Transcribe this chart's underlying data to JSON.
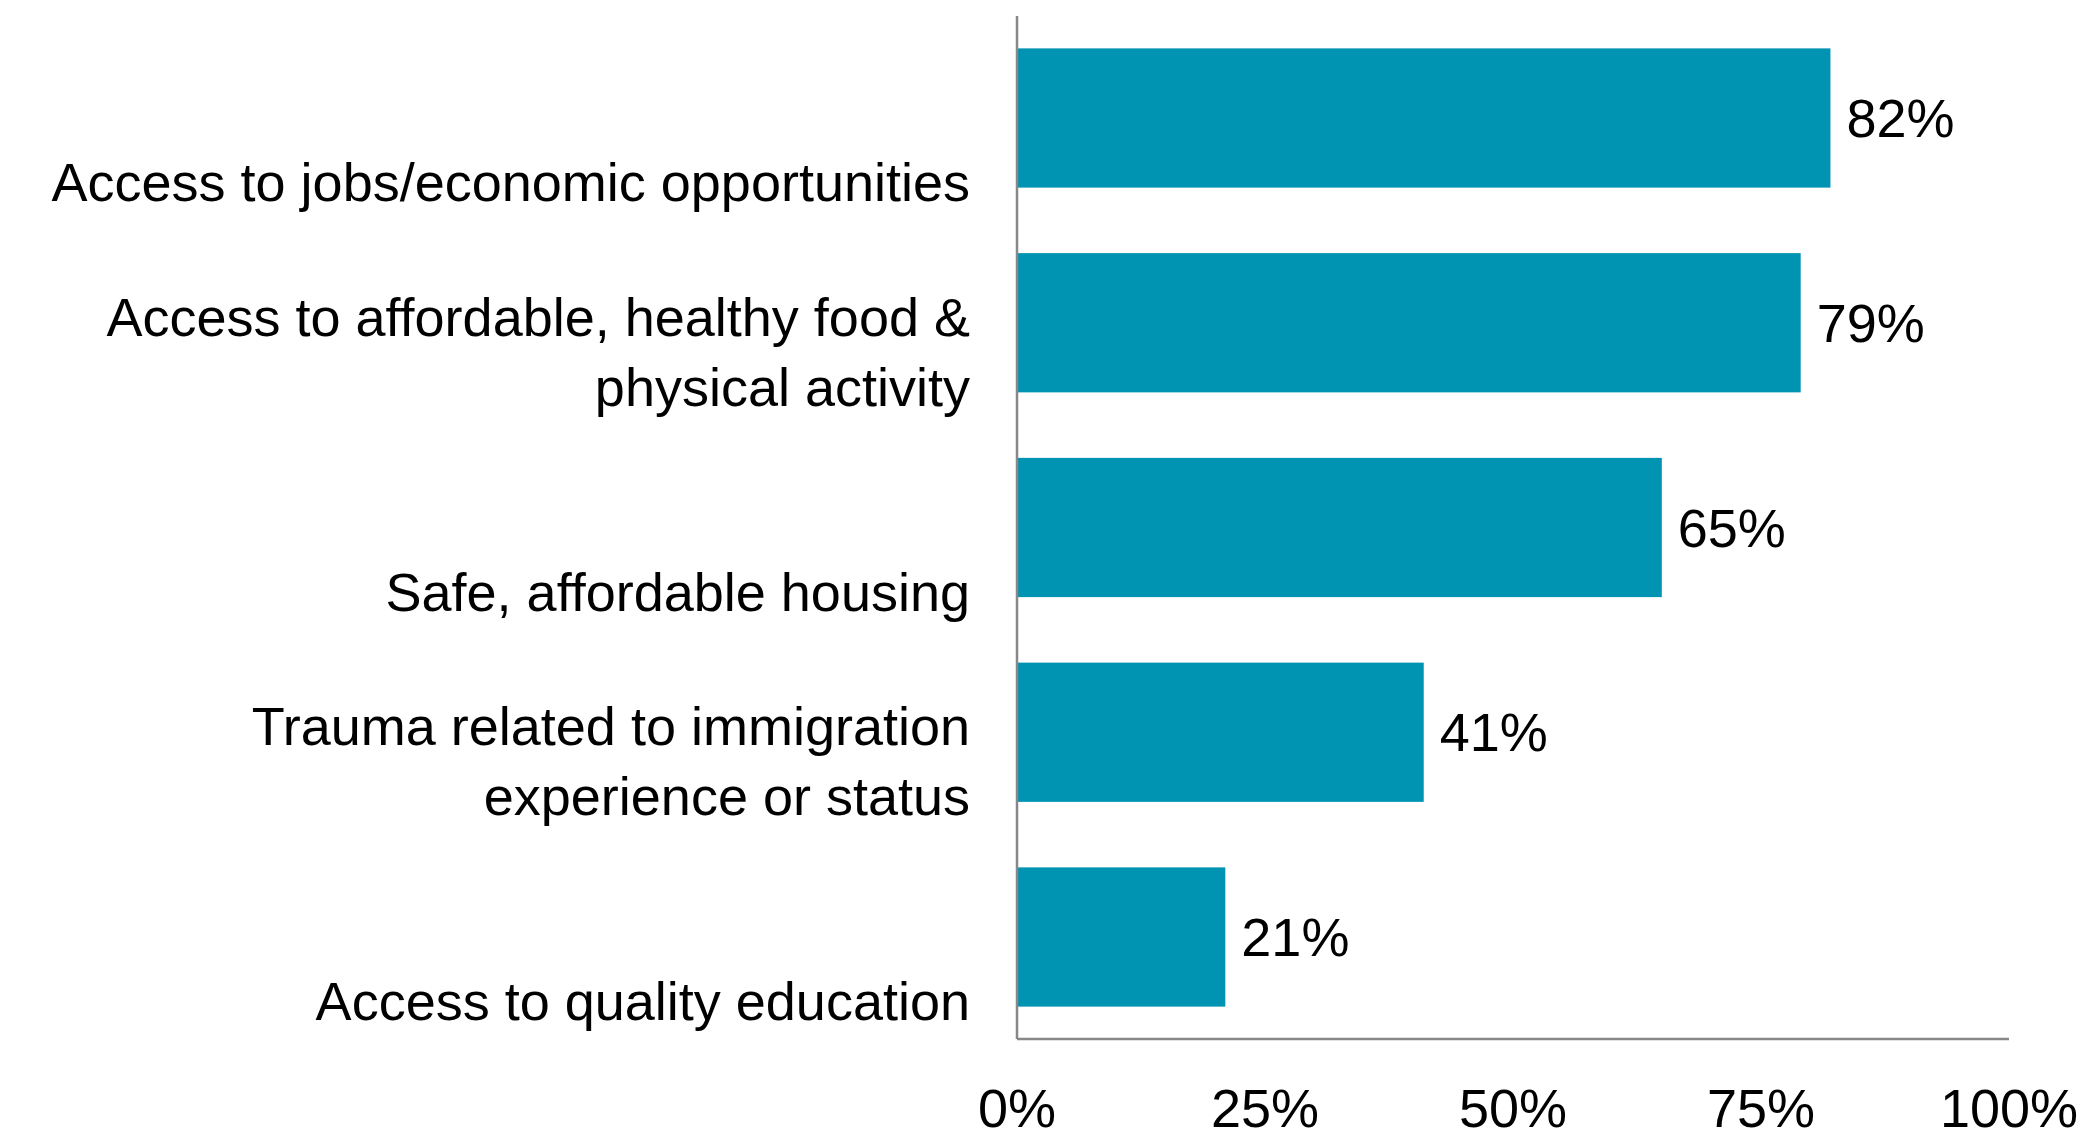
{
  "chart_data": {
    "type": "bar",
    "orientation": "horizontal",
    "categories": [
      "Access to jobs/economic opportunities",
      "Access to affordable, healthy food & physical activity",
      "Safe, affordable housing",
      "Trauma related to immigration experience or status",
      "Access to quality education"
    ],
    "values": [
      82,
      79,
      65,
      41,
      21
    ],
    "color": "#0093b2",
    "xlim": [
      0,
      100
    ],
    "xticks": [
      {
        "value": 0,
        "label": "0%"
      },
      {
        "value": 25,
        "label": "25%"
      },
      {
        "value": 50,
        "label": "50%"
      },
      {
        "value": 75,
        "label": "75%"
      },
      {
        "value": 100,
        "label": "100%"
      }
    ],
    "value_labels": [
      "82%",
      "79%",
      "65%",
      "41%",
      "21%"
    ],
    "grid": false
  }
}
